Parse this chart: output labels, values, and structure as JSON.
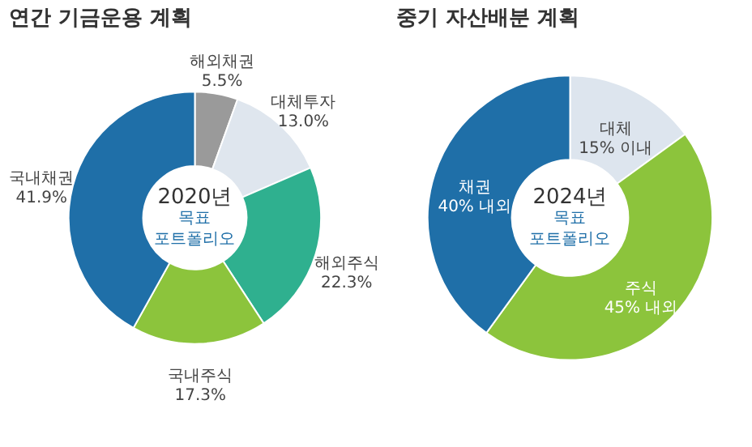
{
  "chart_data": [
    {
      "type": "donut",
      "title": "연간 기금운용 계획",
      "categories": [
        "해외채권",
        "대체투자",
        "해외주식",
        "국내주식",
        "국내채권"
      ],
      "values": [
        5.5,
        13.0,
        22.3,
        17.3,
        41.9
      ],
      "value_labels": [
        "5.5%",
        "13.0%",
        "22.3%",
        "17.3%",
        "41.9%"
      ],
      "colors": [
        "#9a9a9a",
        "#dfe6ee",
        "#2fb08f",
        "#8cc43c",
        "#1f6fa8"
      ],
      "annotations": [
        "2020년",
        "목표",
        "포트폴리오"
      ],
      "legend": false
    },
    {
      "type": "donut",
      "title": "중기 자산배분 계획",
      "categories": [
        "대체",
        "주식",
        "채권"
      ],
      "values": [
        15,
        45,
        40
      ],
      "value_labels": [
        "15% 이내",
        "45% 내외",
        "40% 내외"
      ],
      "colors": [
        "#dde5ee",
        "#8cc43c",
        "#1f6fa8"
      ],
      "annotations": [
        "2024년",
        "목표",
        "포트폴리오"
      ],
      "legend": false
    }
  ]
}
